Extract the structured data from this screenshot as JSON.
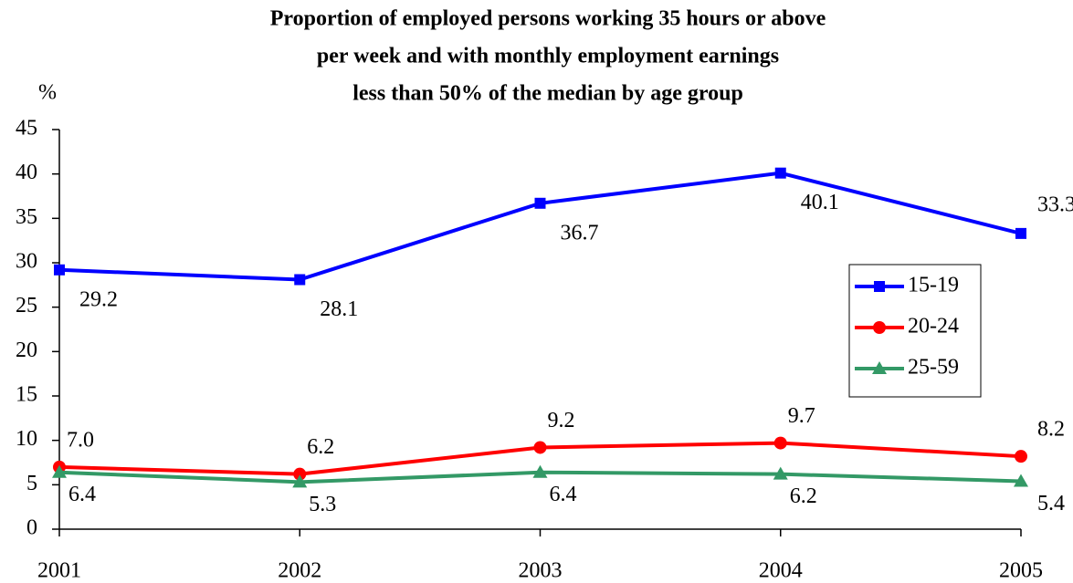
{
  "chart_data": {
    "type": "line",
    "title": [
      "Proportion of employed persons working 35 hours or above",
      "per week and with monthly employment earnings",
      "less than 50% of the median by age group"
    ],
    "y_label": "%",
    "categories": [
      "2001",
      "2002",
      "2003",
      "2004",
      "2005"
    ],
    "series": [
      {
        "name": "15-19",
        "color": "#0000ff",
        "marker": "square",
        "values": [
          29.2,
          28.1,
          36.7,
          40.1,
          33.3
        ],
        "value_labels": [
          "29.2",
          "28.1",
          "36.7",
          "40.1",
          "33.3"
        ]
      },
      {
        "name": "20-24",
        "color": "#ff0000",
        "marker": "circle",
        "values": [
          7.0,
          6.2,
          9.2,
          9.7,
          8.2
        ],
        "value_labels": [
          "7.0",
          "6.2",
          "9.2",
          "9.7",
          "8.2"
        ]
      },
      {
        "name": "25-59",
        "color": "#339966",
        "marker": "triangle",
        "values": [
          6.4,
          5.3,
          6.4,
          6.2,
          5.4
        ],
        "value_labels": [
          "6.4",
          "5.3",
          "6.4",
          "6.2",
          "5.4"
        ]
      }
    ],
    "ylim": [
      0,
      45
    ],
    "yticks": [
      0,
      5,
      10,
      15,
      20,
      25,
      30,
      35,
      40,
      45
    ],
    "grid": false,
    "legend": "right"
  }
}
